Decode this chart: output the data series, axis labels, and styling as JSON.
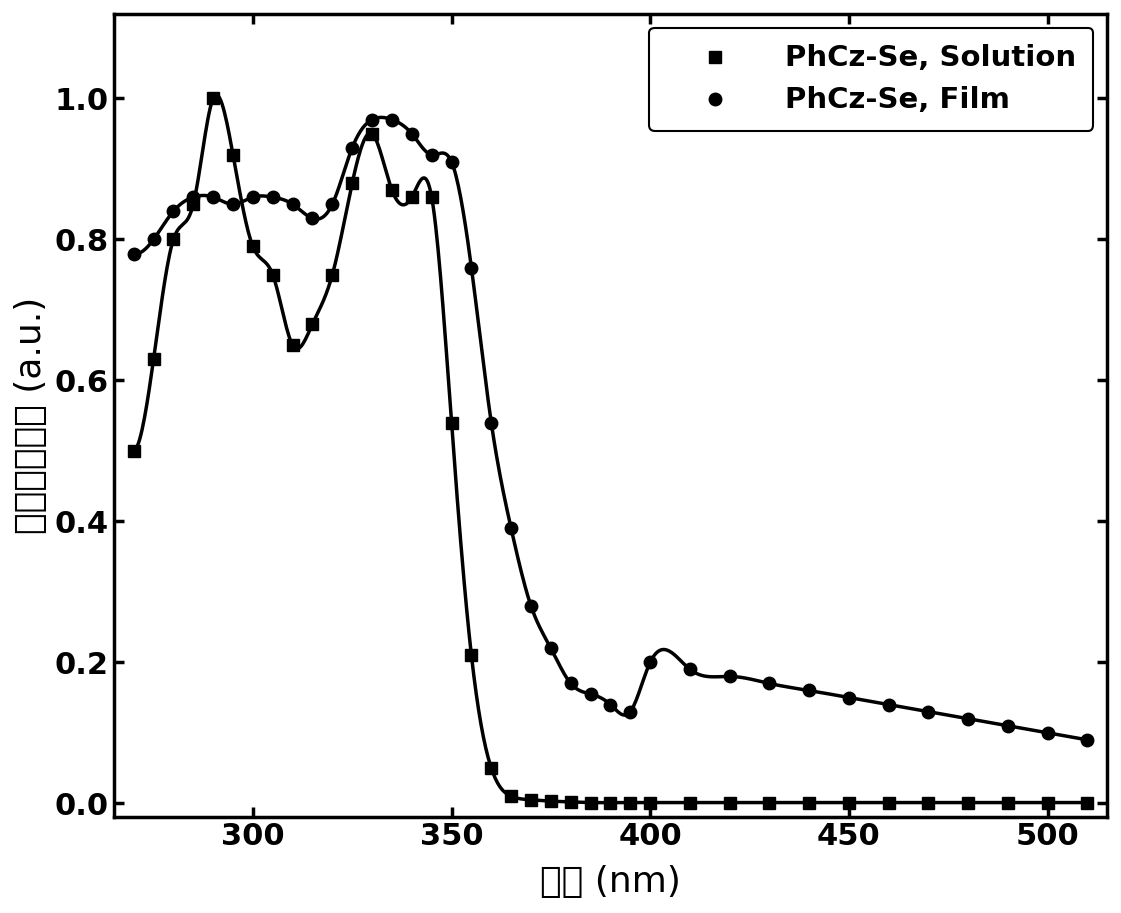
{
  "solution_x": [
    270,
    275,
    280,
    285,
    290,
    295,
    300,
    305,
    310,
    315,
    320,
    325,
    330,
    335,
    340,
    345,
    350,
    355,
    360,
    365,
    370,
    375,
    380,
    385,
    390,
    395,
    400,
    410,
    420,
    430,
    440,
    450,
    460,
    470,
    480,
    490,
    500,
    510
  ],
  "solution_y": [
    0.5,
    0.63,
    0.8,
    0.85,
    1.0,
    0.92,
    0.79,
    0.75,
    0.65,
    0.68,
    0.75,
    0.88,
    0.95,
    0.87,
    0.86,
    0.86,
    0.54,
    0.21,
    0.05,
    0.01,
    0.005,
    0.003,
    0.002,
    0.001,
    0.001,
    0.001,
    0.001,
    0.001,
    0.001,
    0.001,
    0.001,
    0.001,
    0.001,
    0.001,
    0.001,
    0.001,
    0.001,
    0.001
  ],
  "film_x": [
    270,
    275,
    280,
    285,
    290,
    295,
    300,
    305,
    310,
    315,
    320,
    325,
    330,
    335,
    340,
    345,
    350,
    355,
    360,
    365,
    370,
    375,
    380,
    385,
    390,
    395,
    400,
    410,
    420,
    430,
    440,
    450,
    460,
    470,
    480,
    490,
    500,
    510
  ],
  "film_y": [
    0.78,
    0.8,
    0.84,
    0.86,
    0.86,
    0.85,
    0.86,
    0.86,
    0.85,
    0.83,
    0.85,
    0.93,
    0.97,
    0.97,
    0.95,
    0.92,
    0.91,
    0.76,
    0.54,
    0.39,
    0.28,
    0.22,
    0.17,
    0.155,
    0.14,
    0.13,
    0.2,
    0.19,
    0.18,
    0.17,
    0.16,
    0.15,
    0.14,
    0.13,
    0.12,
    0.11,
    0.1,
    0.09
  ],
  "line_color": "#000000",
  "ylabel": "归一化吸光度 (a.u.)",
  "xlabel": "波长 (nm)",
  "legend1": "PhCz-Se, Solution",
  "legend2": "PhCz-Se, Film",
  "xlim": [
    265,
    515
  ],
  "ylim": [
    -0.02,
    1.12
  ],
  "xticks": [
    300,
    350,
    400,
    450,
    500
  ],
  "yticks": [
    0.0,
    0.2,
    0.4,
    0.6,
    0.8,
    1.0
  ],
  "figsize": [
    11.21,
    9.13
  ],
  "dpi": 100
}
